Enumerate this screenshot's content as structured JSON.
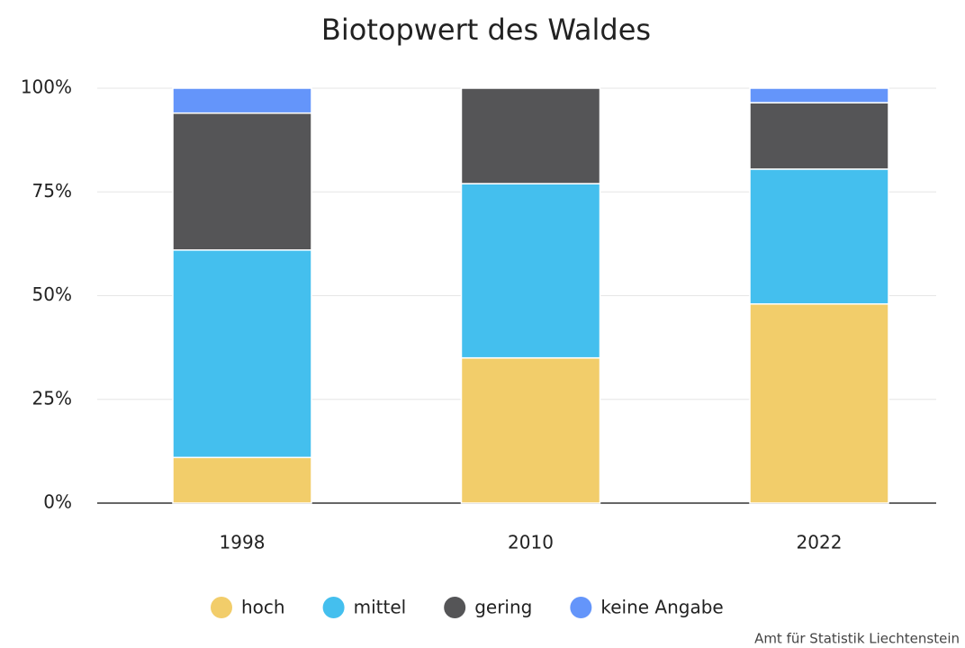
{
  "chart_data": {
    "type": "stacked_bar",
    "title": "Biotopwert des Waldes",
    "categories": [
      "1998",
      "2010",
      "2022"
    ],
    "series": [
      {
        "name": "hoch",
        "color": "#f2cd6a",
        "values": [
          11,
          35,
          48
        ]
      },
      {
        "name": "mittel",
        "color": "#44bfee",
        "values": [
          50,
          42,
          32.5
        ]
      },
      {
        "name": "gering",
        "color": "#555557",
        "values": [
          33,
          23,
          16
        ]
      },
      {
        "name": "keine Angabe",
        "color": "#6495fa",
        "values": [
          6,
          0,
          3.5
        ]
      }
    ],
    "ylim": [
      0,
      100
    ],
    "yticks": [
      {
        "value": 0,
        "label": "0%"
      },
      {
        "value": 25,
        "label": "25%"
      },
      {
        "value": 50,
        "label": "50%"
      },
      {
        "value": 75,
        "label": "75%"
      },
      {
        "value": 100,
        "label": "100%"
      }
    ],
    "grid": true,
    "legend": "bottom",
    "source": "Amt für Statistik Liechtenstein"
  }
}
